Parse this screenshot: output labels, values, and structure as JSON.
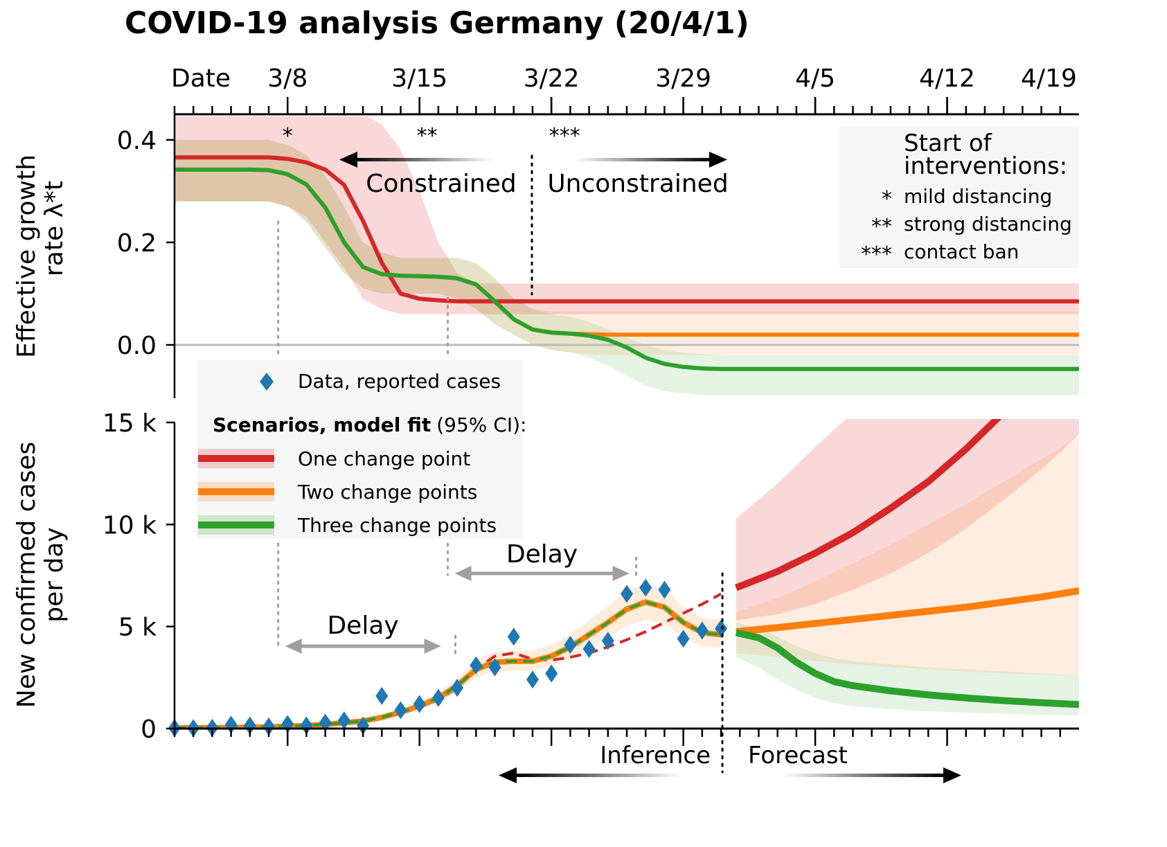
{
  "title": "COVID-19 analysis Germany (20/4/1)",
  "colors": {
    "one": "#d62728",
    "two": "#ff7f0e",
    "three": "#2ca02c",
    "data": "#1f77b4",
    "delay_arrow": "#a0a0a0",
    "zero_line": "#bbbbbb"
  },
  "chart_data": [
    {
      "type": "line",
      "panel": "growth-rate",
      "ylabel": "Effective growth rate λ*t",
      "ylabel_lines": [
        "Effective growth",
        "rate λ*t"
      ],
      "x_axis": {
        "label": "Date",
        "tick_labels": [
          "3/8",
          "3/15",
          "3/22",
          "3/29",
          "4/5",
          "4/12",
          "4/19"
        ],
        "tick_day": [
          8,
          15,
          22,
          29,
          36,
          43,
          48.4
        ],
        "range_day": [
          2,
          50
        ]
      },
      "yticks": [
        0.4,
        0.2,
        0.0
      ],
      "yticklabels": [
        "0.4",
        "0.2",
        "0.0"
      ],
      "ylim": [
        -0.1,
        0.45
      ],
      "interventions": [
        {
          "marker": "*",
          "day": 8
        },
        {
          "marker": "**",
          "day": 15.4
        },
        {
          "marker": "***",
          "day": 22.7
        }
      ],
      "constraint_arrows": {
        "left": "Constrained",
        "right": "Unconstrained"
      },
      "legend": {
        "title": "Start of interventions:",
        "title_lines": [
          "Start of",
          "interventions:"
        ],
        "items": [
          {
            "marker": "*",
            "label": "mild distancing"
          },
          {
            "marker": "**",
            "label": "strong distancing"
          },
          {
            "marker": "***",
            "label": "contact ban"
          }
        ]
      },
      "series": [
        {
          "name": "One change point",
          "color": "#d62728",
          "x": [
            2,
            3,
            4,
            5,
            6,
            7,
            8,
            9,
            10,
            11,
            12,
            13,
            14,
            15,
            16,
            17,
            18,
            19,
            20,
            21,
            22,
            50
          ],
          "y": [
            0.366,
            0.366,
            0.366,
            0.366,
            0.366,
            0.366,
            0.363,
            0.356,
            0.342,
            0.312,
            0.242,
            0.16,
            0.1,
            0.09,
            0.087,
            0.085,
            0.085,
            0.085,
            0.085,
            0.085,
            0.085,
            0.085
          ],
          "ci_low": [
            0.28,
            0.28,
            0.28,
            0.28,
            0.28,
            0.28,
            0.27,
            0.25,
            0.2,
            0.15,
            0.09,
            0.07,
            0.06,
            0.06,
            0.06,
            0.06,
            0.06,
            0.06,
            0.06,
            0.06,
            0.06,
            0.06
          ],
          "ci_high": [
            0.45,
            0.45,
            0.45,
            0.45,
            0.45,
            0.45,
            0.45,
            0.45,
            0.45,
            0.45,
            0.45,
            0.43,
            0.38,
            0.3,
            0.2,
            0.14,
            0.12,
            0.12,
            0.12,
            0.12,
            0.12,
            0.12
          ]
        },
        {
          "name": "Two change points",
          "color": "#ff7f0e",
          "x": [
            2,
            3,
            4,
            5,
            6,
            7,
            8,
            9,
            10,
            11,
            12,
            13,
            14,
            15,
            16,
            17,
            18,
            19,
            20,
            21,
            22,
            23,
            24,
            25,
            26,
            27,
            50
          ],
          "y": [
            0.342,
            0.342,
            0.342,
            0.342,
            0.342,
            0.341,
            0.333,
            0.313,
            0.268,
            0.2,
            0.152,
            0.138,
            0.135,
            0.134,
            0.133,
            0.13,
            0.118,
            0.085,
            0.05,
            0.03,
            0.024,
            0.022,
            0.021,
            0.02,
            0.02,
            0.02,
            0.02
          ],
          "ci_low": [
            0.28,
            0.28,
            0.28,
            0.28,
            0.28,
            0.28,
            0.27,
            0.24,
            0.19,
            0.14,
            0.11,
            0.1,
            0.1,
            0.1,
            0.1,
            0.09,
            0.07,
            0.04,
            0.02,
            0.0,
            -0.01,
            -0.015,
            -0.018,
            -0.02,
            -0.02,
            -0.02,
            -0.02
          ],
          "ci_high": [
            0.4,
            0.4,
            0.4,
            0.4,
            0.4,
            0.4,
            0.39,
            0.37,
            0.33,
            0.27,
            0.2,
            0.18,
            0.17,
            0.17,
            0.17,
            0.17,
            0.16,
            0.13,
            0.09,
            0.07,
            0.065,
            0.065,
            0.065,
            0.065,
            0.065,
            0.065,
            0.065
          ]
        },
        {
          "name": "Three change points",
          "color": "#2ca02c",
          "x": [
            2,
            3,
            4,
            5,
            6,
            7,
            8,
            9,
            10,
            11,
            12,
            13,
            14,
            15,
            16,
            17,
            18,
            19,
            20,
            21,
            22,
            23,
            24,
            25,
            26,
            27,
            28,
            29,
            30,
            31,
            32,
            50
          ],
          "y": [
            0.342,
            0.342,
            0.342,
            0.342,
            0.342,
            0.341,
            0.333,
            0.313,
            0.268,
            0.2,
            0.152,
            0.138,
            0.135,
            0.134,
            0.133,
            0.13,
            0.118,
            0.085,
            0.05,
            0.03,
            0.024,
            0.022,
            0.018,
            0.01,
            -0.005,
            -0.025,
            -0.037,
            -0.043,
            -0.046,
            -0.047,
            -0.047,
            -0.047
          ],
          "ci_low": [
            0.28,
            0.28,
            0.28,
            0.28,
            0.28,
            0.28,
            0.27,
            0.24,
            0.19,
            0.14,
            0.11,
            0.1,
            0.1,
            0.1,
            0.1,
            0.09,
            0.07,
            0.04,
            0.02,
            0.0,
            -0.01,
            -0.015,
            -0.025,
            -0.04,
            -0.06,
            -0.08,
            -0.09,
            -0.095,
            -0.098,
            -0.098,
            -0.098,
            -0.098
          ],
          "ci_high": [
            0.4,
            0.4,
            0.4,
            0.4,
            0.4,
            0.4,
            0.39,
            0.37,
            0.33,
            0.27,
            0.2,
            0.18,
            0.17,
            0.17,
            0.17,
            0.17,
            0.16,
            0.13,
            0.09,
            0.07,
            0.06,
            0.055,
            0.045,
            0.03,
            0.015,
            0.0,
            -0.01,
            -0.015,
            -0.018,
            -0.02,
            -0.02,
            -0.02
          ]
        }
      ]
    },
    {
      "type": "line",
      "panel": "new-cases",
      "ylabel": "New confirmed cases per day",
      "ylabel_lines": [
        "New confirmed cases",
        "per day"
      ],
      "yticks": [
        15000,
        10000,
        5000,
        0
      ],
      "yticklabels": [
        "15 k",
        "10 k",
        "5 k",
        "0"
      ],
      "ylim": [
        0,
        15000
      ],
      "x_range_day": [
        2,
        50
      ],
      "forecast_start_day": 31,
      "annotations": {
        "delay": "Delay",
        "inference": "Inference",
        "forecast": "Forecast"
      },
      "delay_arrows": [
        {
          "from_day": 7.5,
          "to_day": 16.5
        },
        {
          "from_day": 16.5,
          "to_day": 26.5
        }
      ],
      "data_label": "Data, reported cases",
      "data": {
        "x": [
          2,
          3,
          4,
          5,
          6,
          7,
          8,
          9,
          10,
          11,
          12,
          13,
          14,
          15,
          16,
          17,
          18,
          19,
          20,
          21,
          22,
          23,
          24,
          25,
          26,
          27,
          28,
          29,
          30,
          31
        ],
        "y": [
          30,
          20,
          40,
          190,
          150,
          100,
          220,
          150,
          290,
          400,
          150,
          1600,
          900,
          1200,
          1500,
          2000,
          3100,
          3000,
          4500,
          2400,
          2700,
          4100,
          3900,
          4300,
          6600,
          6900,
          6800,
          4400,
          4800,
          4900
        ]
      },
      "legend": {
        "title": "Scenarios, model fit",
        "title_suffix": "(95% CI):",
        "items": [
          {
            "label": "One change point",
            "color": "#d62728"
          },
          {
            "label": "Two change points",
            "color": "#ff7f0e"
          },
          {
            "label": "Three change points",
            "color": "#2ca02c"
          }
        ]
      },
      "series": [
        {
          "name": "One change point",
          "color": "#d62728",
          "fit_x": [
            2,
            4,
            6,
            8,
            10,
            12,
            14,
            16,
            17,
            18,
            19,
            20,
            21,
            22,
            23,
            24,
            25,
            26,
            27,
            28,
            29,
            30,
            31
          ],
          "fit_y": [
            30,
            40,
            80,
            150,
            250,
            420,
            750,
            1400,
            2000,
            2900,
            3550,
            3700,
            3400,
            3350,
            3500,
            3700,
            4000,
            4350,
            4750,
            5200,
            5650,
            6100,
            6600
          ],
          "forecast_x": [
            31.8,
            34,
            36,
            38,
            40,
            42,
            44,
            46,
            48,
            50
          ],
          "forecast_y": [
            6900,
            7700,
            8600,
            9600,
            10800,
            12100,
            13700,
            15500,
            17600,
            20000
          ],
          "ci_low": [
            5300,
            5600,
            6100,
            6800,
            7600,
            8600,
            9800,
            11200,
            12700,
            14400
          ],
          "ci_high": [
            10300,
            12000,
            13800,
            15500,
            17000,
            18500,
            20000,
            21500,
            23000,
            24500
          ]
        },
        {
          "name": "Two change points",
          "color": "#ff7f0e",
          "fit_x": [
            2,
            4,
            6,
            8,
            10,
            12,
            13,
            14,
            15,
            16,
            17,
            18,
            19,
            20,
            21,
            22,
            23,
            24,
            25,
            26,
            27,
            28,
            29,
            30,
            31
          ],
          "fit_y": [
            30,
            40,
            60,
            110,
            200,
            370,
            550,
            800,
            1100,
            1500,
            2100,
            2900,
            3250,
            3300,
            3300,
            3550,
            4000,
            4600,
            5200,
            5850,
            6200,
            5950,
            5200,
            4700,
            4600
          ],
          "forecast_x": [
            31.8,
            34,
            36,
            38,
            40,
            42,
            44,
            46,
            48,
            50
          ],
          "forecast_y": [
            4750,
            4950,
            5150,
            5350,
            5550,
            5750,
            5950,
            6200,
            6450,
            6750
          ],
          "ci_low": [
            3700,
            3500,
            3300,
            3150,
            3000,
            2900,
            2800,
            2700,
            2650,
            2600
          ],
          "ci_high": [
            5700,
            6400,
            7200,
            8100,
            9000,
            10000,
            11000,
            12100,
            13200,
            14300
          ]
        },
        {
          "name": "Three change points",
          "color": "#2ca02c",
          "fit_x": [
            2,
            4,
            6,
            8,
            10,
            12,
            13,
            14,
            15,
            16,
            17,
            18,
            19,
            20,
            21,
            22,
            23,
            24,
            25,
            26,
            27,
            28,
            29,
            30,
            31
          ],
          "fit_y": [
            30,
            40,
            60,
            110,
            200,
            370,
            550,
            800,
            1100,
            1500,
            2100,
            2900,
            3250,
            3300,
            3300,
            3550,
            4000,
            4600,
            5200,
            5850,
            6200,
            5950,
            5200,
            4700,
            4600
          ],
          "forecast_x": [
            31.8,
            33,
            34,
            35,
            36,
            37,
            38,
            40,
            42,
            44,
            46,
            48,
            50
          ],
          "forecast_y": [
            4700,
            4450,
            3950,
            3250,
            2700,
            2300,
            2100,
            1850,
            1650,
            1500,
            1370,
            1270,
            1180
          ],
          "ci_low": [
            3500,
            3000,
            2400,
            1900,
            1500,
            1250,
            1100,
            950,
            850,
            780,
            720,
            680,
            650
          ],
          "ci_high": [
            5200,
            4900,
            4500,
            4050,
            3700,
            3450,
            3300,
            3150,
            3000,
            2900,
            2800,
            2700,
            2600
          ]
        }
      ]
    }
  ]
}
